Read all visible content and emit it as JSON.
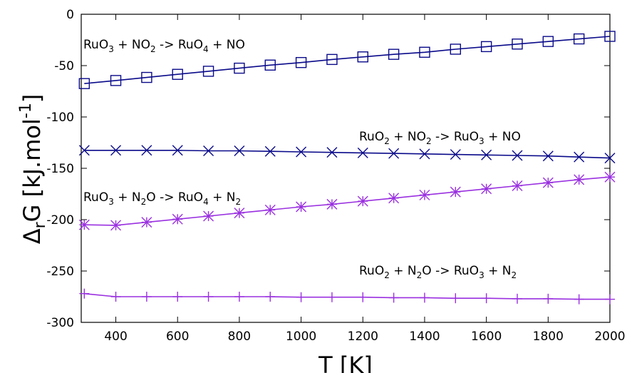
{
  "chart_data": {
    "type": "line",
    "title": "",
    "xlabel": "T [K]",
    "ylabel": {
      "base": "Δ",
      "sub": "r",
      "main": "G [kJ.mol",
      "sup": "-1",
      "end": "]"
    },
    "xlim": [
      288,
      2000
    ],
    "ylim": [
      -300,
      0
    ],
    "xticks": [
      400,
      600,
      800,
      1000,
      1200,
      1400,
      1600,
      1800,
      2000
    ],
    "yticks": [
      0,
      -50,
      -100,
      -150,
      -200,
      -250,
      -300
    ],
    "grid": false,
    "legend": "none",
    "series": [
      {
        "marker": "square",
        "color": "#0a0a8a",
        "x": [
          298,
          400,
          500,
          600,
          700,
          800,
          900,
          1000,
          1100,
          1200,
          1300,
          1400,
          1500,
          1600,
          1700,
          1800,
          1900,
          2000
        ],
        "values": [
          -67.5,
          -64.5,
          -61.5,
          -58.5,
          -55.5,
          -52.5,
          -49.5,
          -47,
          -44,
          -41.5,
          -39,
          -37,
          -34,
          -31.5,
          -29,
          -26.5,
          -24,
          -21.5
        ],
        "label_parts": [
          {
            "t": "RuO"
          },
          {
            "t": "3",
            "s": "sub"
          },
          {
            "t": " + NO"
          },
          {
            "t": "2",
            "s": "sub"
          },
          {
            "t": " -> RuO"
          },
          {
            "t": "4",
            "s": "sub"
          },
          {
            "t": " + NO"
          }
        ]
      },
      {
        "marker": "x",
        "color": "#0a0a8a",
        "x": [
          298,
          400,
          500,
          600,
          700,
          800,
          900,
          1000,
          1100,
          1200,
          1300,
          1400,
          1500,
          1600,
          1700,
          1800,
          1900,
          2000
        ],
        "values": [
          -132.5,
          -132.5,
          -132.5,
          -132.5,
          -133,
          -133,
          -133.5,
          -134,
          -134.5,
          -135,
          -135.5,
          -136,
          -136.5,
          -137,
          -137.5,
          -138,
          -139,
          -140
        ],
        "label_parts": [
          {
            "t": "RuO"
          },
          {
            "t": "2",
            "s": "sub"
          },
          {
            "t": " + NO"
          },
          {
            "t": "2",
            "s": "sub"
          },
          {
            "t": " -> RuO"
          },
          {
            "t": "3",
            "s": "sub"
          },
          {
            "t": " + NO"
          }
        ]
      },
      {
        "marker": "star",
        "color": "#9a30e0",
        "x": [
          298,
          400,
          500,
          600,
          700,
          800,
          900,
          1000,
          1100,
          1200,
          1300,
          1400,
          1500,
          1600,
          1700,
          1800,
          1900,
          2000
        ],
        "values": [
          -205,
          -205.5,
          -202.5,
          -199.5,
          -196.5,
          -193.5,
          -190.5,
          -187.5,
          -185,
          -182,
          -179,
          -176,
          -173,
          -170,
          -167,
          -164,
          -161,
          -158.5
        ],
        "label_parts": [
          {
            "t": "RuO"
          },
          {
            "t": "3",
            "s": "sub"
          },
          {
            "t": " + N"
          },
          {
            "t": "2",
            "s": "sub"
          },
          {
            "t": "O -> RuO"
          },
          {
            "t": "4",
            "s": "sub"
          },
          {
            "t": " + N"
          },
          {
            "t": "2",
            "s": "sub"
          }
        ]
      },
      {
        "marker": "plus",
        "color": "#9a30e0",
        "x": [
          298,
          400,
          500,
          600,
          700,
          800,
          900,
          1000,
          1100,
          1200,
          1300,
          1400,
          1500,
          1600,
          1700,
          1800,
          1900,
          2000
        ],
        "values": [
          -272,
          -275,
          -275,
          -275,
          -275,
          -275,
          -275,
          -275.5,
          -275.5,
          -275.5,
          -276,
          -276,
          -276.5,
          -276.5,
          -277,
          -277,
          -277.5,
          -277.5
        ],
        "label_parts": [
          {
            "t": "RuO"
          },
          {
            "t": "2",
            "s": "sub"
          },
          {
            "t": " + N"
          },
          {
            "t": "2",
            "s": "sub"
          },
          {
            "t": "O -> RuO"
          },
          {
            "t": "3",
            "s": "sub"
          },
          {
            "t": " + N"
          },
          {
            "t": "2",
            "s": "sub"
          }
        ]
      }
    ]
  }
}
